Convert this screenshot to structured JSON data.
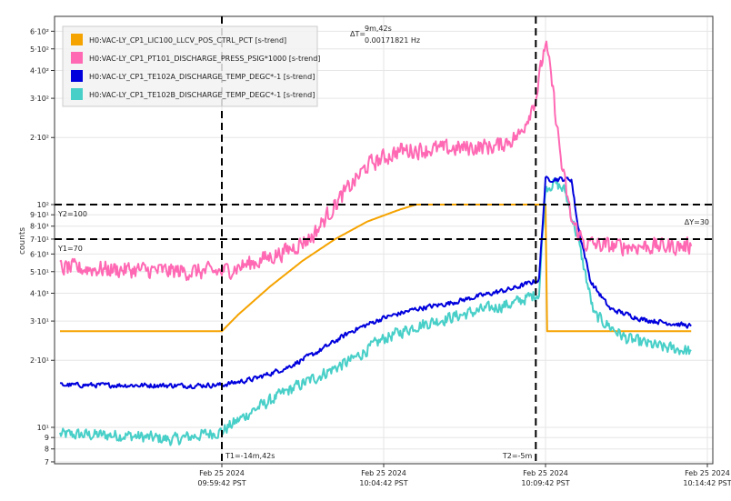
{
  "chart_data": {
    "type": "line",
    "ylabel": "counts",
    "log_scale_y": true,
    "ylim": [
      7,
      650
    ],
    "y_ticks": [
      {
        "v": 600,
        "label": "6·10²"
      },
      {
        "v": 500,
        "label": "5·10²"
      },
      {
        "v": 400,
        "label": "4·10²"
      },
      {
        "v": 300,
        "label": "3·10²"
      },
      {
        "v": 200,
        "label": "2·10²"
      },
      {
        "v": 100,
        "label": "10²"
      },
      {
        "v": 90,
        "label": "9·10¹"
      },
      {
        "v": 80,
        "label": "8·10¹"
      },
      {
        "v": 70,
        "label": "7·10¹"
      },
      {
        "v": 60,
        "label": "6·10¹"
      },
      {
        "v": 50,
        "label": "5·10¹"
      },
      {
        "v": 40,
        "label": "4·10¹"
      },
      {
        "v": 30,
        "label": "3·10¹"
      },
      {
        "v": 20,
        "label": "2·10¹"
      },
      {
        "v": 10,
        "label": "10¹"
      },
      {
        "v": 9,
        "label": "9"
      },
      {
        "v": 8,
        "label": "8"
      },
      {
        "v": 7,
        "label": "7"
      }
    ],
    "xlim_min": [
      0,
      21
    ],
    "x_ticks": [
      {
        "t": 5,
        "date": "Feb 25 2024",
        "time": "09:59:42 PST"
      },
      {
        "t": 10,
        "date": "Feb 25 2024",
        "time": "10:04:42 PST"
      },
      {
        "t": 15,
        "date": "Feb 25 2024",
        "time": "10:09:42 PST"
      },
      {
        "t": 20,
        "date": "Feb 25 2024",
        "time": "10:14:42 PST"
      }
    ],
    "grid": true,
    "legend_position": "top-left",
    "series": [
      {
        "name": "H0:VAC-LY_CP1_LIC100_LLCV_POS_CTRL_PCT [s-trend]",
        "color": "#f5a300",
        "noise": 0,
        "points": [
          [
            0,
            27
          ],
          [
            5,
            27
          ],
          [
            5.5,
            32
          ],
          [
            6.5,
            43
          ],
          [
            7.5,
            56
          ],
          [
            8.5,
            70
          ],
          [
            9.5,
            84
          ],
          [
            10.5,
            95
          ],
          [
            11,
            100
          ],
          [
            15,
            100
          ],
          [
            15.05,
            27
          ],
          [
            19.5,
            27
          ]
        ]
      },
      {
        "name": "H0:VAC-LY_CP1_PT101_DISCHARGE_PRESS_PSIG*1000 [s-trend]",
        "color": "#ff69b4",
        "noise": 0.035,
        "points": [
          [
            0,
            52
          ],
          [
            2,
            51
          ],
          [
            4,
            50
          ],
          [
            5,
            50
          ],
          [
            6,
            55
          ],
          [
            7,
            62
          ],
          [
            7.8,
            72
          ],
          [
            8.5,
            100
          ],
          [
            9.5,
            150
          ],
          [
            10.5,
            175
          ],
          [
            12,
            178
          ],
          [
            13.5,
            183
          ],
          [
            14.2,
            205
          ],
          [
            14.7,
            300
          ],
          [
            15,
            540
          ],
          [
            15.2,
            350
          ],
          [
            15.5,
            150
          ],
          [
            15.8,
            85
          ],
          [
            16.2,
            67
          ],
          [
            17,
            65
          ],
          [
            19.5,
            65
          ]
        ]
      },
      {
        "name": "H0:VAC-LY_CP1_TE102A_DISCHARGE_TEMP_DEGC*-1 [s-trend]",
        "color": "#0000dd",
        "noise": 0.01,
        "points": [
          [
            0,
            15.5
          ],
          [
            4,
            15.4
          ],
          [
            5,
            15.5
          ],
          [
            6,
            16.5
          ],
          [
            7,
            18.5
          ],
          [
            8,
            22
          ],
          [
            9,
            27
          ],
          [
            10,
            31
          ],
          [
            11,
            34
          ],
          [
            12,
            36
          ],
          [
            13,
            39
          ],
          [
            14,
            42
          ],
          [
            14.8,
            46
          ],
          [
            15,
            130
          ],
          [
            15.8,
            130
          ],
          [
            16,
            80
          ],
          [
            16.4,
            45
          ],
          [
            17,
            34
          ],
          [
            18,
            30.5
          ],
          [
            19.5,
            28.5
          ]
        ]
      },
      {
        "name": "H0:VAC-LY_CP1_TE102B_DISCHARGE_TEMP_DEGC*-1 [s-trend]",
        "color": "#48cfc8",
        "noise": 0.025,
        "points": [
          [
            0,
            9.3
          ],
          [
            2,
            9.2
          ],
          [
            3.5,
            8.8
          ],
          [
            5,
            9.6
          ],
          [
            6,
            12
          ],
          [
            7,
            14.5
          ],
          [
            8,
            17
          ],
          [
            8.5,
            18.5
          ],
          [
            9,
            20
          ],
          [
            10,
            25
          ],
          [
            11,
            28.5
          ],
          [
            12,
            31
          ],
          [
            13,
            33.5
          ],
          [
            14,
            36
          ],
          [
            14.8,
            40
          ],
          [
            15,
            120
          ],
          [
            15.3,
            125
          ],
          [
            15.6,
            115
          ],
          [
            16,
            70
          ],
          [
            16.5,
            32
          ],
          [
            17.5,
            25
          ],
          [
            18.5,
            23
          ],
          [
            19.5,
            22
          ]
        ]
      }
    ],
    "annotations": {
      "delta_t_label": "ΔT=",
      "delta_t_value": "9m,42s",
      "delta_t_freq": "0.00171821 Hz",
      "t1_label": "T1=-14m,42s",
      "t2_label": "T2=-5m",
      "t1_min": 5,
      "t2_min": 14.7,
      "y1_label": "Y1=70",
      "y1_value": 70,
      "y2_label": "Y2=100",
      "y2_value": 100,
      "delta_y_label": "ΔY=30"
    }
  }
}
